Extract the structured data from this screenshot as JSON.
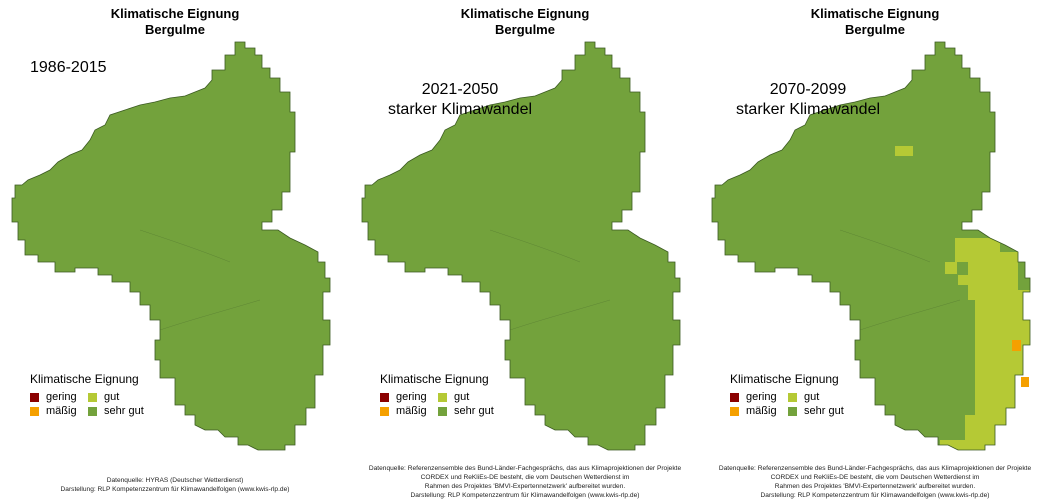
{
  "panels": [
    {
      "title_line1": "Klimatische Eignung",
      "title_line2": "Bergulme",
      "period_line1": "1986-2015",
      "period_line2": "",
      "legend_title": "Klimatische Eignung",
      "source_lines": [
        "Datenquelle: HYRAS (Deutscher Wetterdienst)",
        "Darstellung: RLP Kompetenzzentrum für Klimawandelfolgen (www.kwis-rlp.de)"
      ]
    },
    {
      "title_line1": "Klimatische Eignung",
      "title_line2": "Bergulme",
      "period_line1": "2021-2050",
      "period_line2": "starker Klimawandel",
      "legend_title": "Klimatische Eignung",
      "source_lines": [
        "Datenquelle: Referenzensemble des Bund-Länder-Fachgesprächs, das aus Klimaprojektionen der Projekte",
        "CORDEX und ReKliEs-DE besteht, die vom Deutschen Wetterdienst im",
        "Rahmen des Projektes 'BMVI-Expertennetzwerk' aufbereitet wurden.",
        "Darstellung: RLP Kompetenzzentrum für Klimawandelfolgen (www.kwis-rlp.de)"
      ]
    },
    {
      "title_line1": "Klimatische Eignung",
      "title_line2": "Bergulme",
      "period_line1": "2070-2099",
      "period_line2": "starker Klimawandel",
      "legend_title": "Klimatische Eignung",
      "source_lines": [
        "Datenquelle: Referenzensemble des Bund-Länder-Fachgesprächs, das aus Klimaprojektionen der Projekte",
        "CORDEX und ReKliEs-DE besteht, die vom Deutschen Wetterdienst im",
        "Rahmen des Projektes 'BMVI-Expertennetzwerk' aufbereitet wurden.",
        "Darstellung: RLP Kompetenzzentrum für Klimawandelfolgen (www.kwis-rlp.de)"
      ]
    }
  ],
  "legend_items": [
    {
      "label": "gering",
      "color": "#8b0000"
    },
    {
      "label": "gut",
      "color": "#b5c935"
    },
    {
      "label": "mäßig",
      "color": "#f5a000"
    },
    {
      "label": "sehr gut",
      "color": "#73a23c"
    }
  ],
  "map_colors": {
    "sehr_gut": "#73a23c",
    "gut": "#b5c935",
    "maessig": "#f5a000",
    "border": "#3b5a22"
  }
}
